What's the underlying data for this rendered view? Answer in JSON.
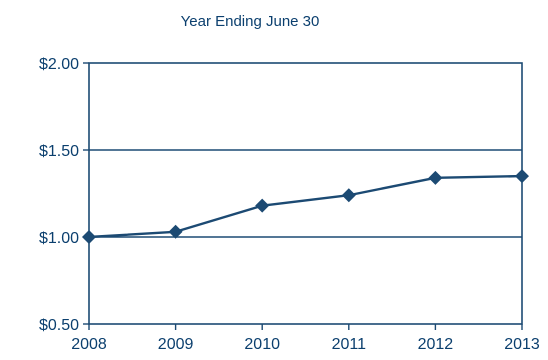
{
  "chart_data": {
    "type": "line",
    "title": "Year Ending June 30",
    "xlabel": "",
    "ylabel": "",
    "x": [
      "2008",
      "2009",
      "2010",
      "2011",
      "2012",
      "2013"
    ],
    "series": [
      {
        "values": [
          1.0,
          1.03,
          1.18,
          1.24,
          1.34,
          1.35
        ]
      }
    ],
    "ylim": [
      0.5,
      2.0
    ],
    "y_ticks": [
      0.5,
      1.0,
      1.5,
      2.0
    ],
    "y_tick_labels": [
      "$0.50",
      "$1.00",
      "$1.50",
      "$2.00"
    ],
    "x_tick_labels": [
      "2008",
      "2009",
      "2010",
      "2011",
      "2012",
      "2013"
    ],
    "grid": true,
    "marker": "diamond",
    "colors": {
      "line": "#1c4a73",
      "marker": "#1c4a73",
      "grid": "#1c4a73",
      "text": "#0b3f6e"
    }
  }
}
